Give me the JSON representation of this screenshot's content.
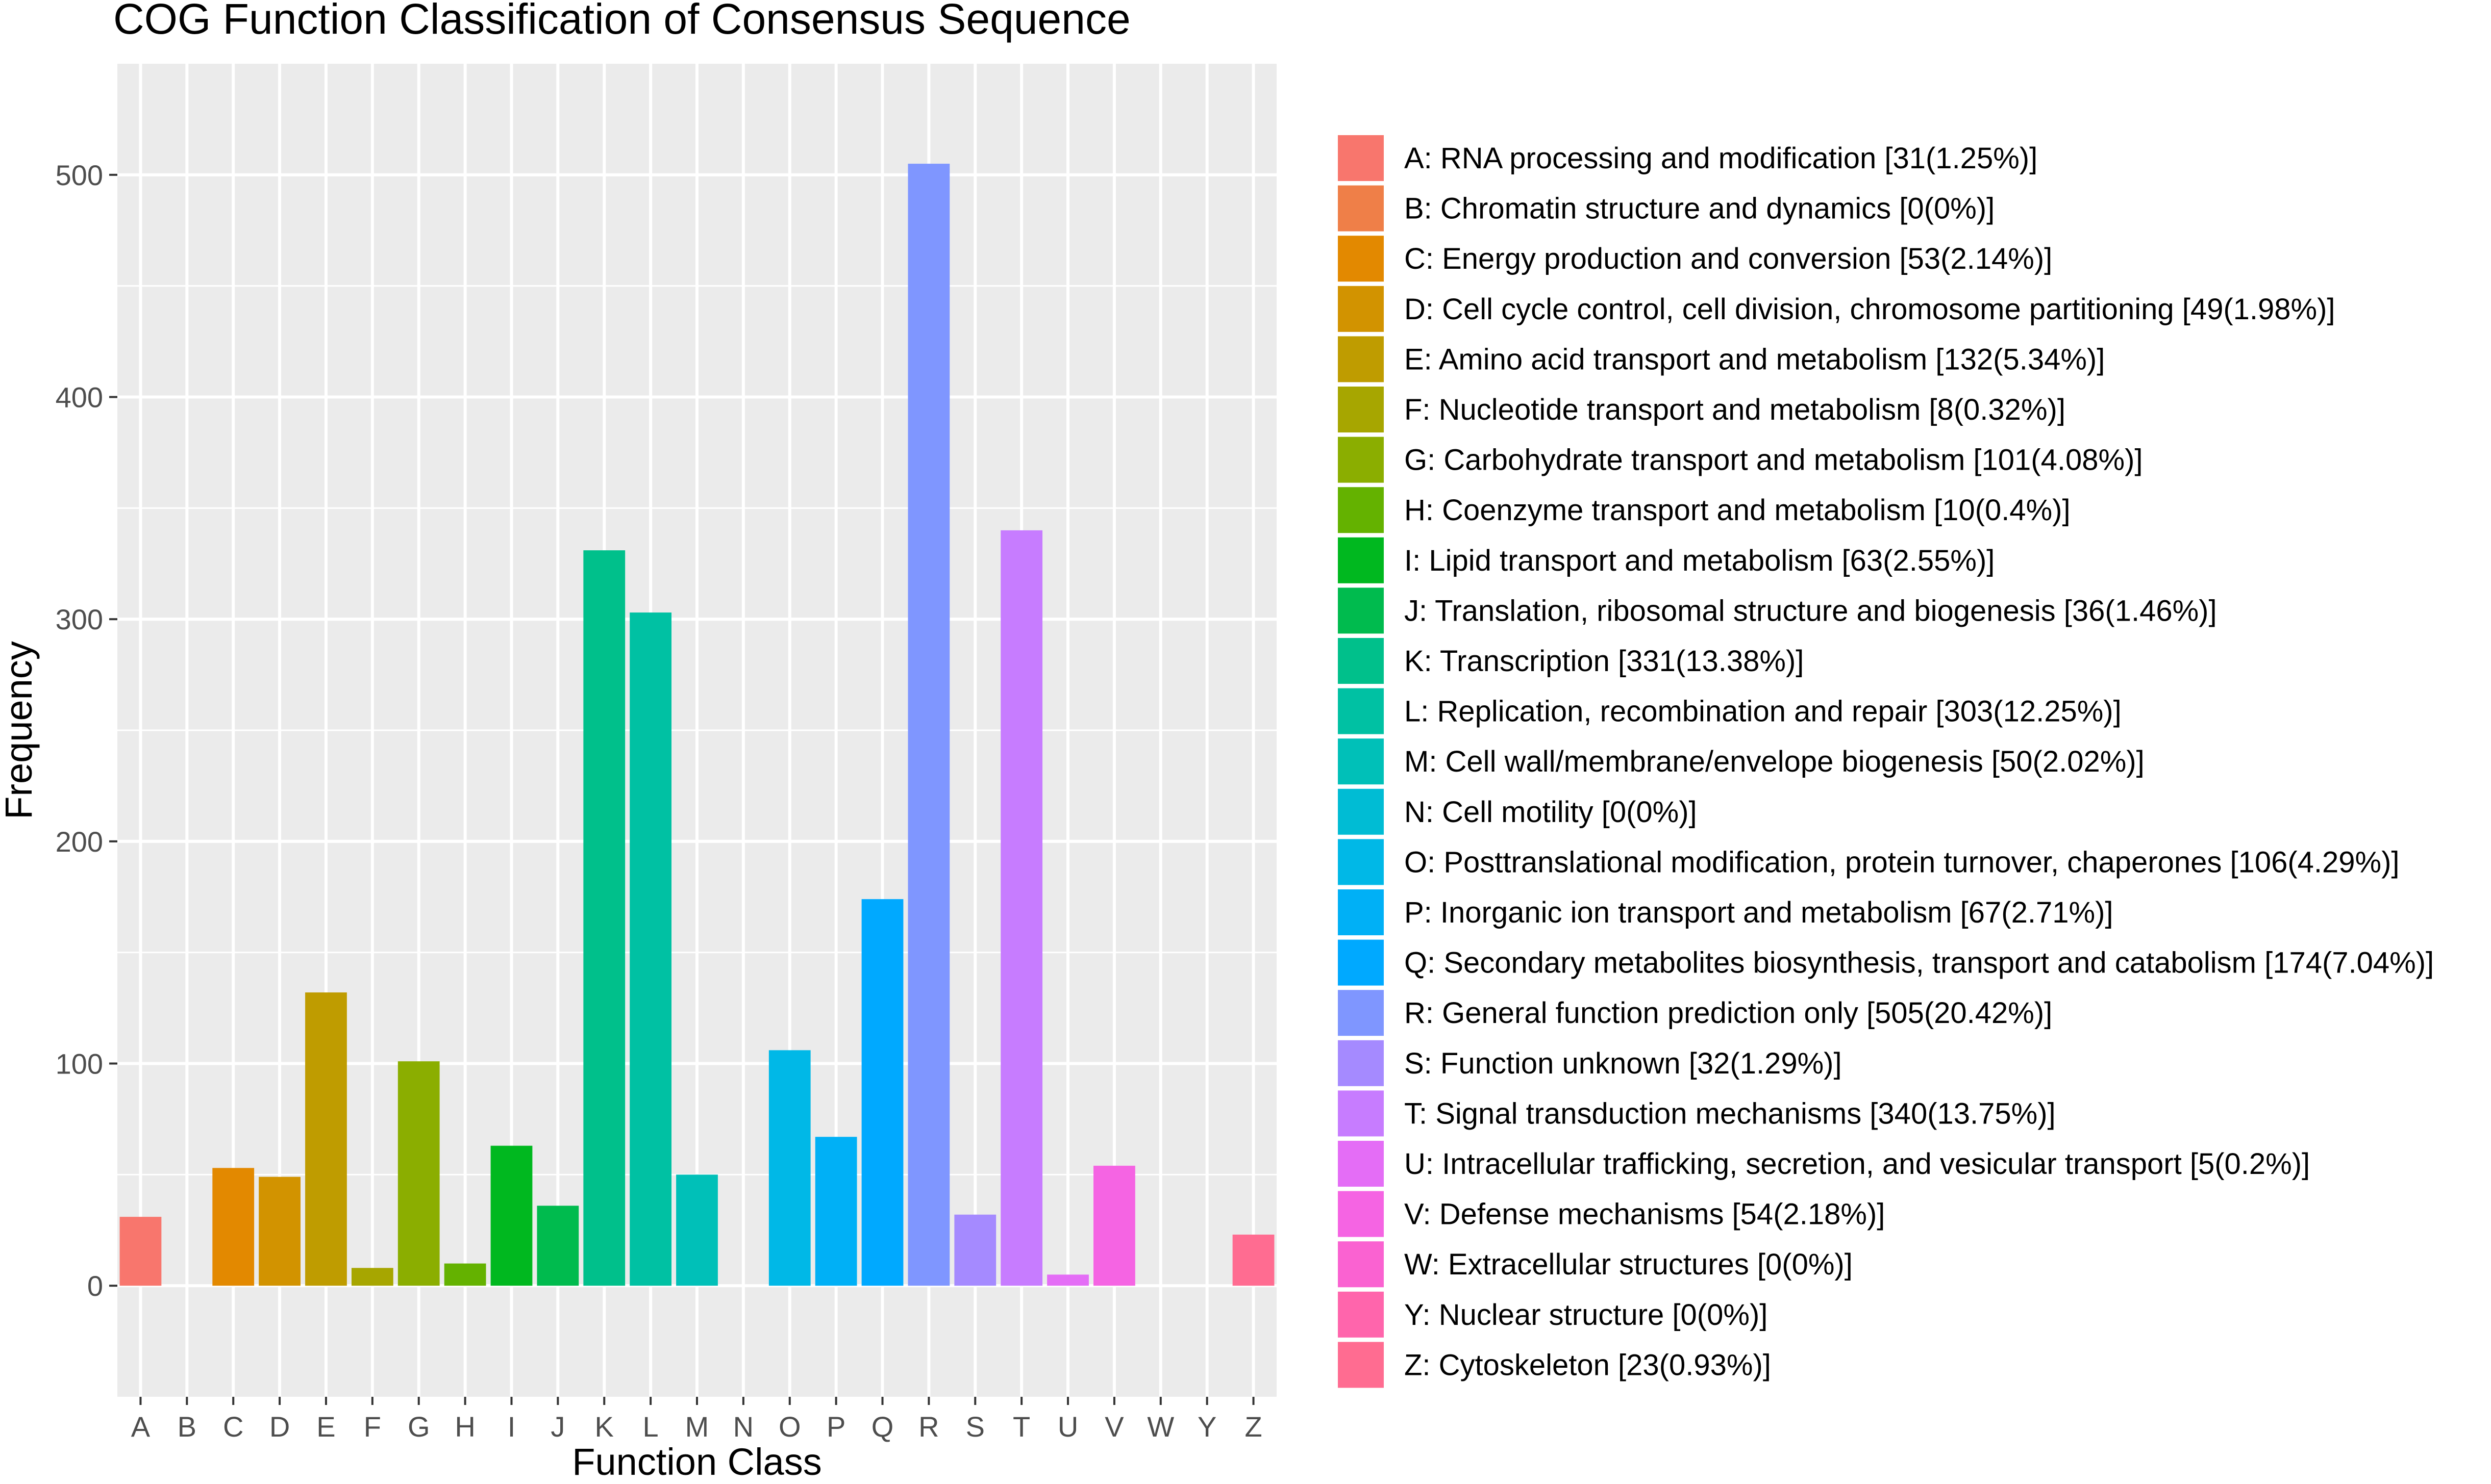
{
  "chart_data": {
    "type": "bar",
    "title": "COG Function Classification of Consensus Sequence",
    "xlabel": "Function Class",
    "ylabel": "Frequency",
    "ylim": [
      -50,
      550
    ],
    "yticks": [
      0,
      100,
      200,
      300,
      400,
      500
    ],
    "grid": true,
    "legend_position": "right",
    "categories": [
      "A",
      "B",
      "C",
      "D",
      "E",
      "F",
      "G",
      "H",
      "I",
      "J",
      "K",
      "L",
      "M",
      "N",
      "O",
      "P",
      "Q",
      "R",
      "S",
      "T",
      "U",
      "V",
      "W",
      "Y",
      "Z"
    ],
    "values": [
      31,
      0,
      53,
      49,
      132,
      8,
      101,
      10,
      63,
      36,
      331,
      303,
      50,
      0,
      106,
      67,
      174,
      505,
      32,
      340,
      5,
      54,
      0,
      0,
      23
    ],
    "colors": [
      "#F8766D",
      "#EF7F48",
      "#E38900",
      "#D29300",
      "#BF9C00",
      "#A7A600",
      "#8BAE00",
      "#64B200",
      "#00B81F",
      "#00BB4E",
      "#00C08B",
      "#00C1A3",
      "#00C0B8",
      "#00BCD4",
      "#00B8E7",
      "#00B0F6",
      "#00A9FF",
      "#7F96FF",
      "#A58AFF",
      "#C77CFF",
      "#E46DF6",
      "#F564E3",
      "#FA62D1",
      "#FF65AC",
      "#FF6C91"
    ],
    "legend": [
      "A: RNA processing and modification [31(1.25%)]",
      "B: Chromatin structure and dynamics [0(0%)]",
      "C: Energy production and conversion [53(2.14%)]",
      "D: Cell cycle control, cell division, chromosome partitioning [49(1.98%)]",
      "E: Amino acid transport and metabolism [132(5.34%)]",
      "F: Nucleotide transport and metabolism [8(0.32%)]",
      "G: Carbohydrate transport and metabolism [101(4.08%)]",
      "H: Coenzyme transport and metabolism [10(0.4%)]",
      "I: Lipid transport and metabolism [63(2.55%)]",
      "J: Translation, ribosomal structure and biogenesis [36(1.46%)]",
      "K: Transcription [331(13.38%)]",
      "L: Replication, recombination and repair [303(12.25%)]",
      "M: Cell wall/membrane/envelope biogenesis [50(2.02%)]",
      "N: Cell motility [0(0%)]",
      "O: Posttranslational modification, protein turnover, chaperones [106(4.29%)]",
      "P: Inorganic ion transport and metabolism [67(2.71%)]",
      "Q: Secondary metabolites biosynthesis, transport and catabolism [174(7.04%)]",
      "R: General function prediction only [505(20.42%)]",
      "S: Function unknown [32(1.29%)]",
      "T: Signal transduction mechanisms [340(13.75%)]",
      "U: Intracellular trafficking, secretion, and vesicular transport [5(0.2%)]",
      "V: Defense mechanisms [54(2.18%)]",
      "W: Extracellular structures [0(0%)]",
      "Y: Nuclear structure [0(0%)]",
      "Z: Cytoskeleton [23(0.93%)]"
    ],
    "panel_background": "#EBEBEB",
    "grid_color": "#FFFFFF"
  }
}
